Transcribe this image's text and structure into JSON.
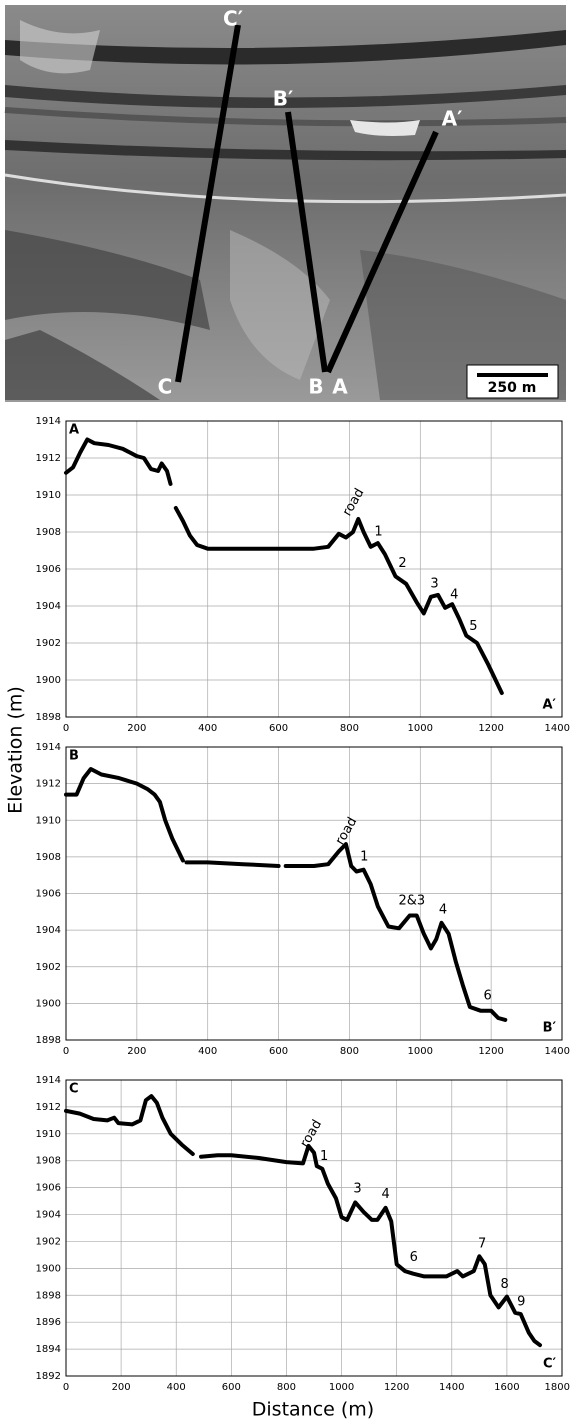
{
  "map": {
    "labels": [
      "C′",
      "B′",
      "A′",
      "C",
      "B",
      "A"
    ],
    "scale_bar": "250 m"
  },
  "axes": {
    "y_label": "Elevation (m)",
    "x_label": "Distance (m)"
  },
  "chart_data": [
    {
      "type": "line",
      "profile_start": "A",
      "profile_end": "A′",
      "x": [
        0,
        20,
        40,
        60,
        80,
        120,
        160,
        200,
        220,
        240,
        260,
        270,
        285,
        295,
        300,
        310,
        330,
        350,
        370,
        400,
        500,
        600,
        650,
        700,
        740,
        770,
        790,
        810,
        825,
        840,
        860,
        880,
        900,
        930,
        960,
        990,
        1010,
        1030,
        1050,
        1070,
        1090,
        1110,
        1130,
        1160,
        1190,
        1230
      ],
      "series": [
        {
          "color": "#000000",
          "values": [
            1911.2,
            1911.5,
            1912.3,
            1913.0,
            1912.8,
            1912.7,
            1912.5,
            1912.1,
            1912.0,
            1911.4,
            1911.3,
            1911.7,
            1911.3,
            1910.6,
            null,
            1909.3,
            1908.6,
            1907.8,
            1907.3,
            1907.1,
            1907.1,
            1907.1,
            1907.1,
            1907.1,
            1907.2,
            1907.9,
            1907.7,
            1908.0,
            1908.7,
            1908.0,
            1907.2,
            1907.4,
            1906.8,
            1905.6,
            1905.2,
            1904.2,
            1903.6,
            1904.5,
            1904.6,
            1903.9,
            1904.1,
            1903.3,
            1902.4,
            1902.0,
            1900.9,
            1899.3
          ]
        }
      ],
      "annotations": [
        "road",
        "1",
        "2",
        "3",
        "4",
        "5"
      ],
      "xlim": [
        0,
        1400
      ],
      "xticks": [
        0,
        200,
        400,
        600,
        800,
        1000,
        1200,
        1400
      ],
      "ylim": [
        1898,
        1914
      ],
      "yticks": [
        1898,
        1900,
        1902,
        1904,
        1906,
        1908,
        1910,
        1912,
        1914
      ],
      "grid": true
    },
    {
      "type": "line",
      "profile_start": "B",
      "profile_end": "B′",
      "x": [
        0,
        30,
        50,
        70,
        100,
        150,
        200,
        230,
        250,
        265,
        280,
        300,
        320,
        330,
        335,
        340,
        400,
        500,
        600,
        610,
        620,
        700,
        740,
        770,
        790,
        805,
        820,
        840,
        860,
        880,
        910,
        940,
        970,
        990,
        1010,
        1030,
        1045,
        1060,
        1080,
        1100,
        1120,
        1140,
        1170,
        1200,
        1220,
        1240
      ],
      "series": [
        {
          "color": "#000000",
          "values": [
            1911.4,
            1911.4,
            1912.3,
            1912.8,
            1912.5,
            1912.3,
            1912.0,
            1911.7,
            1911.4,
            1911.0,
            1910.0,
            1909.0,
            1908.2,
            1907.8,
            null,
            1907.7,
            1907.7,
            1907.6,
            1907.5,
            null,
            1907.5,
            1907.5,
            1907.6,
            1908.3,
            1908.7,
            1907.5,
            1907.2,
            1907.3,
            1906.5,
            1905.3,
            1904.2,
            1904.1,
            1904.8,
            1904.8,
            1903.8,
            1903.0,
            1903.5,
            1904.4,
            1903.8,
            1902.3,
            1901.0,
            1899.8,
            1899.6,
            1899.6,
            1899.2,
            1899.1
          ]
        }
      ],
      "annotations": [
        "road",
        "1",
        "2&3",
        "4",
        "6"
      ],
      "xlim": [
        0,
        1400
      ],
      "xticks": [
        0,
        200,
        400,
        600,
        800,
        1000,
        1200,
        1400
      ],
      "ylim": [
        1898,
        1914
      ],
      "yticks": [
        1898,
        1900,
        1902,
        1904,
        1906,
        1908,
        1910,
        1912,
        1914
      ],
      "grid": true
    },
    {
      "type": "line",
      "profile_start": "C",
      "profile_end": "C′",
      "x": [
        0,
        50,
        100,
        150,
        175,
        190,
        240,
        270,
        290,
        310,
        330,
        350,
        380,
        420,
        460,
        475,
        490,
        550,
        600,
        700,
        800,
        860,
        880,
        900,
        910,
        930,
        950,
        980,
        1000,
        1020,
        1050,
        1080,
        1110,
        1130,
        1160,
        1180,
        1200,
        1230,
        1260,
        1300,
        1380,
        1420,
        1440,
        1480,
        1500,
        1520,
        1540,
        1570,
        1600,
        1630,
        1650,
        1680,
        1700,
        1720
      ],
      "series": [
        {
          "color": "#000000",
          "values": [
            1911.7,
            1911.5,
            1911.1,
            1911.0,
            1911.2,
            1910.8,
            1910.7,
            1911.0,
            1912.5,
            1912.8,
            1912.3,
            1911.2,
            1910.0,
            1909.2,
            1908.5,
            null,
            1908.3,
            1908.4,
            1908.4,
            1908.2,
            1907.9,
            1907.8,
            1909.1,
            1908.6,
            1907.6,
            1907.4,
            1906.3,
            1905.2,
            1903.8,
            1903.6,
            1904.9,
            1904.2,
            1903.6,
            1903.6,
            1904.5,
            1903.5,
            1900.3,
            1899.8,
            1899.6,
            1899.4,
            1899.4,
            1899.8,
            1899.4,
            1899.8,
            1900.9,
            1900.3,
            1898.0,
            1897.1,
            1897.9,
            1896.7,
            1896.6,
            1895.2,
            1894.6,
            1894.3
          ]
        }
      ],
      "annotations": [
        "road",
        "1",
        "3",
        "4",
        "6",
        "7",
        "8",
        "9"
      ],
      "xlim": [
        0,
        1800
      ],
      "xticks": [
        0,
        200,
        400,
        600,
        800,
        1000,
        1200,
        1400,
        1600,
        1800
      ],
      "ylim": [
        1892,
        1914
      ],
      "yticks": [
        1892,
        1894,
        1896,
        1898,
        1900,
        1902,
        1904,
        1906,
        1908,
        1910,
        1912,
        1914
      ],
      "grid": true
    }
  ]
}
